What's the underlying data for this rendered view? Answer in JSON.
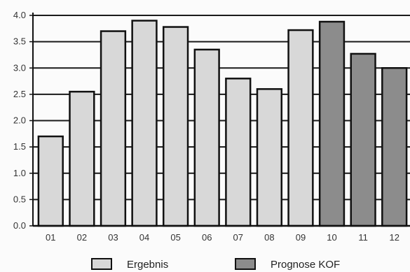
{
  "chart_data": {
    "type": "bar",
    "categories": [
      "01",
      "02",
      "03",
      "04",
      "05",
      "06",
      "07",
      "08",
      "09",
      "10",
      "11",
      "12"
    ],
    "values": [
      1.7,
      2.55,
      3.7,
      3.9,
      3.78,
      3.35,
      2.8,
      2.6,
      3.72,
      3.88,
      3.27,
      3.0
    ],
    "bar_series": [
      "Ergebnis",
      "Ergebnis",
      "Ergebnis",
      "Ergebnis",
      "Ergebnis",
      "Ergebnis",
      "Ergebnis",
      "Ergebnis",
      "Ergebnis",
      "Prognose KOF",
      "Prognose KOF",
      "Prognose KOF"
    ],
    "series": [
      {
        "name": "Ergebnis",
        "color": "#d8d8d8"
      },
      {
        "name": "Prognose KOF",
        "color": "#8c8c8c"
      }
    ],
    "ylim": [
      0,
      4.0
    ],
    "yticks": [
      "0.0",
      "0.5",
      "1.0",
      "1.5",
      "2.0",
      "2.5",
      "3.0",
      "3.5",
      "4.0"
    ],
    "grid": true,
    "legend_position": "bottom",
    "title": "",
    "xlabel": "",
    "ylabel": ""
  }
}
